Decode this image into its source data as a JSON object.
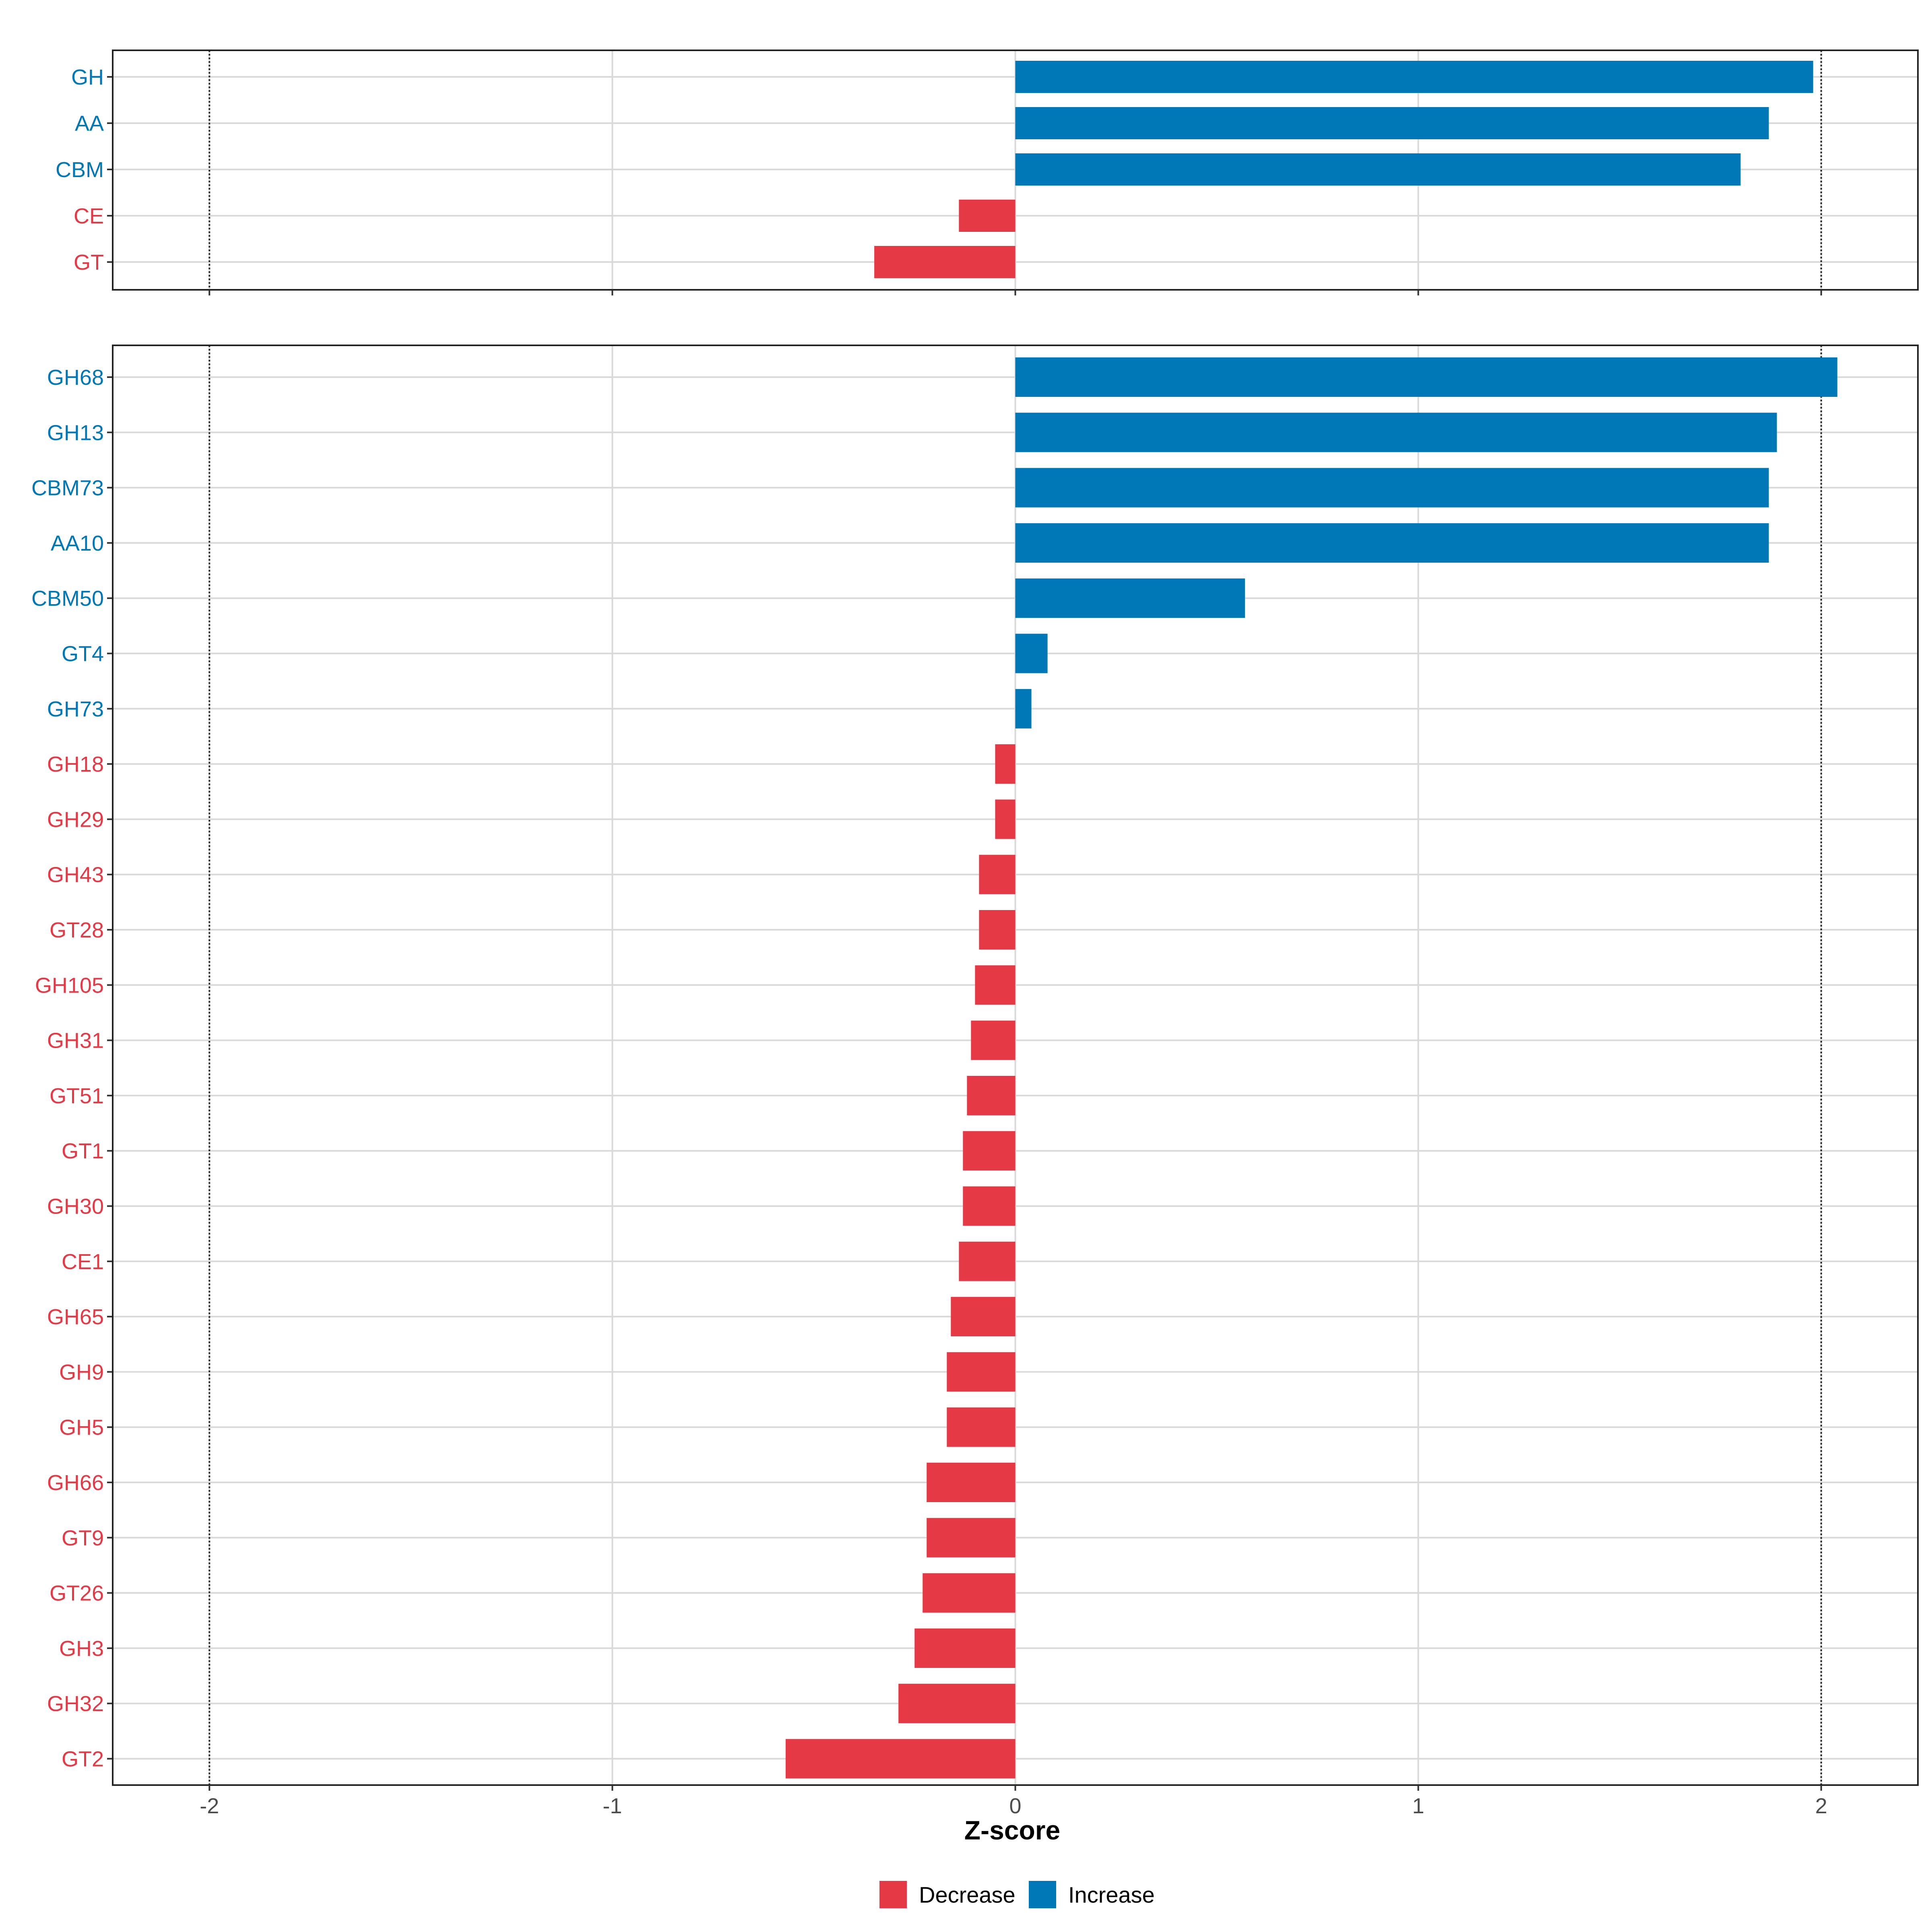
{
  "chart_data": {
    "type": "bar",
    "orientation": "horizontal",
    "xlabel": "Z-score",
    "xlim": [
      -2.24,
      2.24
    ],
    "xticks": [
      -2,
      -1,
      0,
      1,
      2
    ],
    "xtick_labels": [
      "-2",
      "-1",
      "0",
      "1",
      "2"
    ],
    "reference_lines": [
      -2,
      2
    ],
    "grid": true,
    "colors": {
      "Decrease": "#E63946",
      "Increase": "#0077B6"
    },
    "legend": {
      "position": "bottom",
      "items": [
        {
          "label": "Decrease",
          "color": "#E63946"
        },
        {
          "label": "Increase",
          "color": "#0077B6"
        }
      ]
    },
    "panels": [
      {
        "name": "classes",
        "categories": [
          "GH",
          "AA",
          "CBM",
          "CE",
          "GT"
        ],
        "values": [
          1.98,
          1.87,
          1.8,
          -0.14,
          -0.35
        ],
        "groups": [
          "Increase",
          "Increase",
          "Increase",
          "Decrease",
          "Decrease"
        ]
      },
      {
        "name": "families",
        "categories": [
          "GH68",
          "GH13",
          "CBM73",
          "AA10",
          "CBM50",
          "GT4",
          "GH73",
          "GH18",
          "GH29",
          "GH43",
          "GT28",
          "GH105",
          "GH31",
          "GT51",
          "GT1",
          "GH30",
          "CE1",
          "GH65",
          "GH9",
          "GH5",
          "GH66",
          "GT9",
          "GT26",
          "GH3",
          "GH32",
          "GT2"
        ],
        "values": [
          2.04,
          1.89,
          1.87,
          1.87,
          0.57,
          0.08,
          0.04,
          -0.05,
          -0.05,
          -0.09,
          -0.09,
          -0.1,
          -0.11,
          -0.12,
          -0.13,
          -0.13,
          -0.14,
          -0.16,
          -0.17,
          -0.17,
          -0.22,
          -0.22,
          -0.23,
          -0.25,
          -0.29,
          -0.57
        ],
        "groups": [
          "Increase",
          "Increase",
          "Increase",
          "Increase",
          "Increase",
          "Increase",
          "Increase",
          "Decrease",
          "Decrease",
          "Decrease",
          "Decrease",
          "Decrease",
          "Decrease",
          "Decrease",
          "Decrease",
          "Decrease",
          "Decrease",
          "Decrease",
          "Decrease",
          "Decrease",
          "Decrease",
          "Decrease",
          "Decrease",
          "Decrease",
          "Decrease",
          "Decrease"
        ]
      }
    ]
  }
}
